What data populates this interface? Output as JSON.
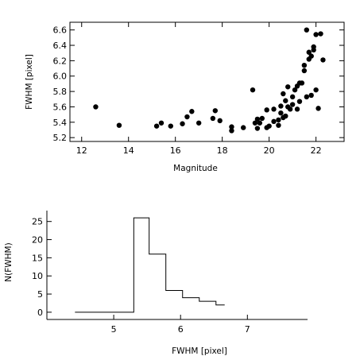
{
  "chart_data": [
    {
      "type": "scatter",
      "xlabel": "Magnitude",
      "ylabel": "FWHM [pixel]",
      "xlim": [
        11.5,
        23.2
      ],
      "ylim": [
        5.15,
        6.7
      ],
      "xticks": [
        12,
        14,
        16,
        18,
        20,
        22
      ],
      "yticks": [
        5.2,
        5.4,
        5.6,
        5.8,
        6.0,
        6.2,
        6.4,
        6.6
      ],
      "grid": false,
      "points": [
        {
          "x": 12.6,
          "y": 5.6
        },
        {
          "x": 13.6,
          "y": 5.36
        },
        {
          "x": 15.2,
          "y": 5.35
        },
        {
          "x": 15.4,
          "y": 5.39
        },
        {
          "x": 15.8,
          "y": 5.35
        },
        {
          "x": 16.3,
          "y": 5.38
        },
        {
          "x": 16.5,
          "y": 5.47
        },
        {
          "x": 16.7,
          "y": 5.54
        },
        {
          "x": 17.0,
          "y": 5.39
        },
        {
          "x": 17.6,
          "y": 5.45
        },
        {
          "x": 17.7,
          "y": 5.55
        },
        {
          "x": 17.9,
          "y": 5.42
        },
        {
          "x": 18.4,
          "y": 5.34
        },
        {
          "x": 18.4,
          "y": 5.29
        },
        {
          "x": 18.9,
          "y": 5.33
        },
        {
          "x": 19.3,
          "y": 5.82
        },
        {
          "x": 19.4,
          "y": 5.39
        },
        {
          "x": 19.5,
          "y": 5.44
        },
        {
          "x": 19.5,
          "y": 5.32
        },
        {
          "x": 19.6,
          "y": 5.39
        },
        {
          "x": 19.7,
          "y": 5.45
        },
        {
          "x": 19.9,
          "y": 5.56
        },
        {
          "x": 19.9,
          "y": 5.33
        },
        {
          "x": 20.0,
          "y": 5.35
        },
        {
          "x": 20.2,
          "y": 5.41
        },
        {
          "x": 20.2,
          "y": 5.57
        },
        {
          "x": 20.4,
          "y": 5.36
        },
        {
          "x": 20.4,
          "y": 5.43
        },
        {
          "x": 20.5,
          "y": 5.52
        },
        {
          "x": 20.5,
          "y": 5.61
        },
        {
          "x": 20.6,
          "y": 5.46
        },
        {
          "x": 20.6,
          "y": 5.77
        },
        {
          "x": 20.7,
          "y": 5.48
        },
        {
          "x": 20.7,
          "y": 5.68
        },
        {
          "x": 20.8,
          "y": 5.6
        },
        {
          "x": 20.8,
          "y": 5.86
        },
        {
          "x": 20.9,
          "y": 5.57
        },
        {
          "x": 21.0,
          "y": 5.63
        },
        {
          "x": 21.0,
          "y": 5.73
        },
        {
          "x": 21.1,
          "y": 5.82
        },
        {
          "x": 21.2,
          "y": 5.57
        },
        {
          "x": 21.2,
          "y": 5.87
        },
        {
          "x": 21.3,
          "y": 5.91
        },
        {
          "x": 21.3,
          "y": 5.67
        },
        {
          "x": 21.4,
          "y": 5.91
        },
        {
          "x": 21.5,
          "y": 6.07
        },
        {
          "x": 21.5,
          "y": 6.14
        },
        {
          "x": 21.6,
          "y": 6.6
        },
        {
          "x": 21.6,
          "y": 5.73
        },
        {
          "x": 21.7,
          "y": 6.22
        },
        {
          "x": 21.7,
          "y": 6.31
        },
        {
          "x": 21.8,
          "y": 5.75
        },
        {
          "x": 21.8,
          "y": 6.26
        },
        {
          "x": 21.9,
          "y": 6.34
        },
        {
          "x": 21.9,
          "y": 6.38
        },
        {
          "x": 22.0,
          "y": 5.82
        },
        {
          "x": 22.0,
          "y": 6.54
        },
        {
          "x": 22.1,
          "y": 5.58
        },
        {
          "x": 22.2,
          "y": 6.55
        },
        {
          "x": 22.3,
          "y": 6.21
        }
      ]
    },
    {
      "type": "bar",
      "style": "step-histogram",
      "xlabel": "FWHM [pixel]",
      "ylabel": "N(FWHM)",
      "xlim": [
        4.0,
        7.9
      ],
      "ylim": [
        -2,
        28
      ],
      "xticks": [
        5,
        6,
        7
      ],
      "yticks": [
        0,
        5,
        10,
        15,
        20,
        25
      ],
      "grid": false,
      "bin_edges": [
        4.42,
        5.3,
        5.53,
        5.78,
        6.03,
        6.28,
        6.53,
        6.66
      ],
      "counts": [
        0,
        26,
        16,
        6,
        4,
        3,
        2
      ]
    }
  ]
}
